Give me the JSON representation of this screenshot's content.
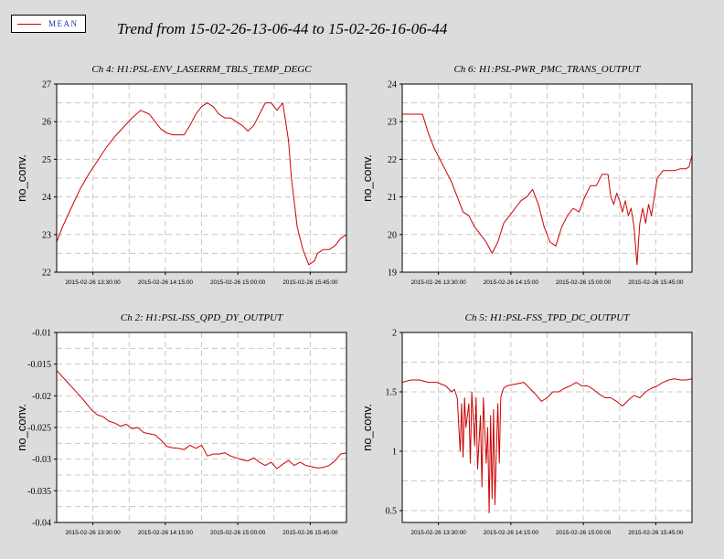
{
  "title": "Trend from 15-02-26-13-06-44 to 15-02-26-16-06-44",
  "legend": {
    "label": "MEAN",
    "color": "#cc0000"
  },
  "chart_data": [
    {
      "type": "line",
      "title": "Ch 4: H1:PSL-ENV_LASERRM_TBLS_TEMP_DEGC",
      "ylabel": "no_conv.",
      "xlabel": "",
      "ylim": [
        22,
        27
      ],
      "yticks": [
        "22",
        "23",
        "24",
        "25",
        "26",
        "27"
      ],
      "yvals": [
        22,
        23,
        24,
        25,
        26,
        27
      ],
      "xticks": [
        "2015-02-26 13:30:00",
        "2015-02-26 14:15:00",
        "2015-02-26 15:00:00",
        "2015-02-26 15:45:00"
      ],
      "xtick_pos": [
        0.125,
        0.375,
        0.625,
        0.875
      ],
      "series": [
        {
          "color": "#cc0000",
          "x": [
            0,
            0.02,
            0.05,
            0.08,
            0.11,
            0.14,
            0.17,
            0.2,
            0.23,
            0.26,
            0.29,
            0.32,
            0.35,
            0.36,
            0.38,
            0.4,
            0.42,
            0.44,
            0.46,
            0.48,
            0.5,
            0.52,
            0.54,
            0.56,
            0.58,
            0.6,
            0.62,
            0.64,
            0.66,
            0.68,
            0.7,
            0.72,
            0.74,
            0.76,
            0.78,
            0.8,
            0.81,
            0.83,
            0.85,
            0.87,
            0.89,
            0.9,
            0.92,
            0.94,
            0.96,
            0.98,
            1.0
          ],
          "y": [
            22.8,
            23.2,
            23.7,
            24.2,
            24.6,
            24.95,
            25.3,
            25.6,
            25.85,
            26.1,
            26.3,
            26.2,
            25.9,
            25.8,
            25.7,
            25.65,
            25.65,
            25.65,
            25.9,
            26.2,
            26.4,
            26.5,
            26.4,
            26.2,
            26.1,
            26.1,
            26.0,
            25.9,
            25.75,
            25.9,
            26.2,
            26.5,
            26.5,
            26.3,
            26.5,
            25.5,
            24.5,
            23.2,
            22.6,
            22.2,
            22.3,
            22.5,
            22.6,
            22.6,
            22.7,
            22.9,
            23.0
          ]
        }
      ]
    },
    {
      "type": "line",
      "title": "Ch 6: H1:PSL-PWR_PMC_TRANS_OUTPUT",
      "ylabel": "no_conv.",
      "xlabel": "",
      "ylim": [
        19,
        24
      ],
      "yticks": [
        "19",
        "20",
        "21",
        "22",
        "23",
        "24"
      ],
      "yvals": [
        19,
        20,
        21,
        22,
        23,
        24
      ],
      "xticks": [
        "2015-02-26 13:30:00",
        "2015-02-26 14:15:00",
        "2015-02-26 15:00:00",
        "2015-02-26 15:45:00"
      ],
      "xtick_pos": [
        0.125,
        0.375,
        0.625,
        0.875
      ],
      "series": [
        {
          "color": "#cc0000",
          "x": [
            0,
            0.02,
            0.05,
            0.07,
            0.09,
            0.11,
            0.13,
            0.15,
            0.17,
            0.19,
            0.21,
            0.23,
            0.25,
            0.27,
            0.29,
            0.31,
            0.33,
            0.35,
            0.37,
            0.39,
            0.41,
            0.43,
            0.45,
            0.47,
            0.49,
            0.51,
            0.53,
            0.55,
            0.57,
            0.59,
            0.61,
            0.63,
            0.65,
            0.67,
            0.69,
            0.71,
            0.72,
            0.73,
            0.74,
            0.75,
            0.76,
            0.77,
            0.78,
            0.79,
            0.8,
            0.81,
            0.82,
            0.83,
            0.84,
            0.85,
            0.86,
            0.87,
            0.88,
            0.9,
            0.92,
            0.94,
            0.96,
            0.98,
            0.99,
            1.0
          ],
          "y": [
            23.2,
            23.2,
            23.2,
            23.2,
            22.7,
            22.3,
            22.0,
            21.7,
            21.4,
            21.0,
            20.6,
            20.5,
            20.2,
            20.0,
            19.8,
            19.5,
            19.8,
            20.3,
            20.5,
            20.7,
            20.9,
            21.0,
            21.2,
            20.8,
            20.2,
            19.8,
            19.7,
            20.2,
            20.5,
            20.7,
            20.6,
            21.0,
            21.3,
            21.3,
            21.6,
            21.6,
            21.0,
            20.8,
            21.1,
            20.9,
            20.6,
            20.9,
            20.5,
            20.7,
            20.2,
            19.2,
            20.3,
            20.7,
            20.3,
            20.8,
            20.5,
            21.0,
            21.5,
            21.7,
            21.7,
            21.7,
            21.75,
            21.75,
            21.8,
            22.1
          ]
        }
      ]
    },
    {
      "type": "line",
      "title": "Ch 2: H1:PSL-ISS_QPD_DY_OUTPUT",
      "ylabel": "no_conv.",
      "xlabel": "",
      "ylim": [
        -0.04,
        -0.01
      ],
      "yticks": [
        "-0.04",
        "-0.035",
        "-0.03",
        "-0.025",
        "-0.02",
        "-0.015",
        "-0.01"
      ],
      "yvals": [
        -0.04,
        -0.035,
        -0.03,
        -0.025,
        -0.02,
        -0.015,
        -0.01
      ],
      "xticks": [
        "2015-02-26 13:30:00",
        "2015-02-26 14:15:00",
        "2015-02-26 15:00:00",
        "2015-02-26 15:45:00"
      ],
      "xtick_pos": [
        0.125,
        0.375,
        0.625,
        0.875
      ],
      "series": [
        {
          "color": "#cc0000",
          "x": [
            0,
            0.03,
            0.06,
            0.09,
            0.12,
            0.14,
            0.16,
            0.18,
            0.2,
            0.22,
            0.24,
            0.26,
            0.28,
            0.3,
            0.32,
            0.34,
            0.36,
            0.38,
            0.4,
            0.42,
            0.44,
            0.46,
            0.48,
            0.5,
            0.52,
            0.54,
            0.56,
            0.58,
            0.6,
            0.62,
            0.64,
            0.66,
            0.68,
            0.7,
            0.72,
            0.74,
            0.76,
            0.78,
            0.8,
            0.82,
            0.84,
            0.86,
            0.88,
            0.9,
            0.92,
            0.94,
            0.96,
            0.98,
            1.0
          ],
          "y": [
            -0.016,
            -0.0175,
            -0.019,
            -0.0205,
            -0.0222,
            -0.023,
            -0.0233,
            -0.024,
            -0.0243,
            -0.0248,
            -0.0245,
            -0.0252,
            -0.025,
            -0.0258,
            -0.026,
            -0.0262,
            -0.027,
            -0.028,
            -0.0282,
            -0.0283,
            -0.0285,
            -0.0278,
            -0.0283,
            -0.0278,
            -0.0295,
            -0.0292,
            -0.0292,
            -0.029,
            -0.0295,
            -0.0298,
            -0.0301,
            -0.0303,
            -0.0298,
            -0.0305,
            -0.031,
            -0.0305,
            -0.0315,
            -0.0308,
            -0.0302,
            -0.031,
            -0.0305,
            -0.031,
            -0.0312,
            -0.0314,
            -0.0313,
            -0.031,
            -0.0303,
            -0.0292,
            -0.029
          ]
        }
      ]
    },
    {
      "type": "line",
      "title": "Ch 5: H1:PSL-FSS_TPD_DC_OUTPUT",
      "ylabel": "no_conv.",
      "xlabel": "",
      "ylim": [
        0.4,
        2.0
      ],
      "yticks": [
        "0.5",
        "1",
        "1.5",
        "2"
      ],
      "yvals": [
        0.5,
        1.0,
        1.5,
        2.0
      ],
      "xticks": [
        "2015-02-26 13:30:00",
        "2015-02-26 14:15:00",
        "2015-02-26 15:00:00",
        "2015-02-26 15:45:00"
      ],
      "xtick_pos": [
        0.125,
        0.375,
        0.625,
        0.875
      ],
      "series": [
        {
          "color": "#cc0000",
          "x": [
            0,
            0.03,
            0.06,
            0.09,
            0.12,
            0.15,
            0.17,
            0.18,
            0.19,
            0.2,
            0.205,
            0.21,
            0.215,
            0.22,
            0.23,
            0.235,
            0.24,
            0.25,
            0.255,
            0.26,
            0.27,
            0.275,
            0.28,
            0.29,
            0.295,
            0.3,
            0.305,
            0.31,
            0.315,
            0.32,
            0.325,
            0.33,
            0.335,
            0.34,
            0.345,
            0.35,
            0.36,
            0.38,
            0.42,
            0.46,
            0.48,
            0.5,
            0.52,
            0.54,
            0.56,
            0.58,
            0.6,
            0.62,
            0.64,
            0.66,
            0.68,
            0.7,
            0.72,
            0.74,
            0.76,
            0.78,
            0.8,
            0.82,
            0.84,
            0.86,
            0.88,
            0.9,
            0.92,
            0.94,
            0.96,
            0.98,
            1.0
          ],
          "y": [
            1.58,
            1.6,
            1.6,
            1.58,
            1.58,
            1.55,
            1.5,
            1.52,
            1.45,
            1.0,
            1.4,
            0.95,
            1.45,
            1.2,
            1.4,
            0.9,
            1.5,
            1.05,
            1.45,
            0.85,
            1.3,
            0.7,
            1.45,
            0.9,
            1.2,
            0.48,
            1.3,
            0.6,
            1.35,
            0.55,
            1.0,
            1.4,
            0.9,
            1.45,
            1.5,
            1.53,
            1.55,
            1.56,
            1.58,
            1.48,
            1.42,
            1.45,
            1.5,
            1.5,
            1.53,
            1.55,
            1.58,
            1.55,
            1.55,
            1.52,
            1.48,
            1.45,
            1.45,
            1.42,
            1.38,
            1.43,
            1.47,
            1.45,
            1.5,
            1.53,
            1.55,
            1.58,
            1.6,
            1.61,
            1.6,
            1.6,
            1.61
          ]
        }
      ]
    }
  ]
}
